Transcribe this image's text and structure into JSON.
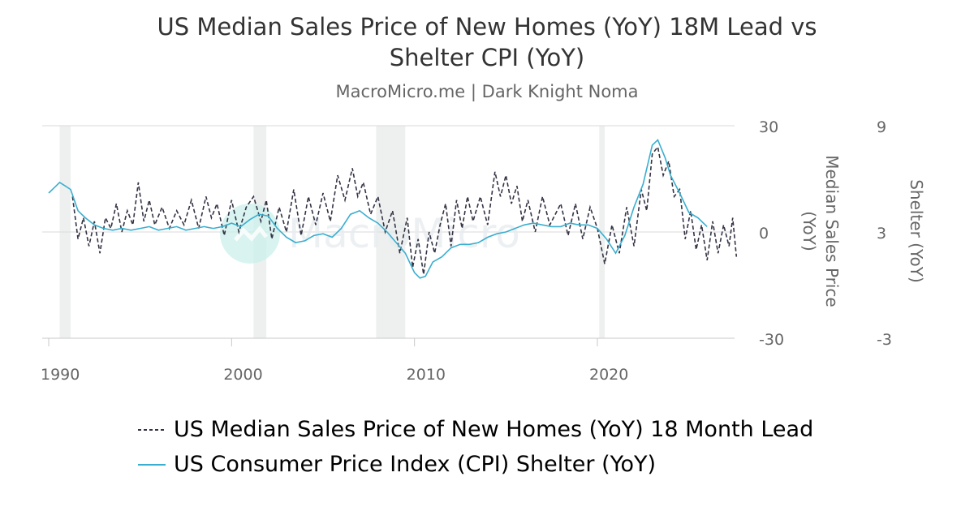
{
  "chart_data": {
    "type": "line",
    "title_lines": [
      "US Median Sales Price of New Homes (YoY) 18M Lead vs",
      "Shelter CPI (YoY)"
    ],
    "subtitle": "MacroMicro.me | Dark Knight Noma",
    "x_ticks": [
      "1990",
      "2000",
      "2010",
      "2020"
    ],
    "xlim": [
      1990,
      2027.5
    ],
    "left_axis": {
      "ticks": [
        "30",
        "0",
        "-30"
      ],
      "range": [
        -30,
        30
      ]
    },
    "right_axis_1": {
      "label_lines": [
        "Median Sales Price",
        "(YoY)"
      ],
      "ticks": [
        "30",
        "0",
        "-30"
      ],
      "range": [
        -30,
        30
      ]
    },
    "right_axis_2": {
      "label": "Shelter (YoY)",
      "ticks": [
        "9",
        "3",
        "-3"
      ],
      "range": [
        -3,
        9
      ]
    },
    "recessions": [
      [
        1990.6,
        1991.2
      ],
      [
        2001.2,
        2001.9
      ],
      [
        2007.9,
        2009.5
      ],
      [
        2020.1,
        2020.4
      ]
    ],
    "series": [
      {
        "name": "US Median Sales Price of New Homes (YoY) 18 Month Lead",
        "axis": "left",
        "style": "dashed",
        "color": "#333344",
        "points": [
          [
            1991.3,
            10
          ],
          [
            1991.6,
            -2
          ],
          [
            1991.9,
            4
          ],
          [
            1992.2,
            -4
          ],
          [
            1992.5,
            3
          ],
          [
            1992.8,
            -6
          ],
          [
            1993.1,
            4
          ],
          [
            1993.4,
            1
          ],
          [
            1993.7,
            8
          ],
          [
            1994.0,
            0
          ],
          [
            1994.3,
            6
          ],
          [
            1994.6,
            2
          ],
          [
            1994.9,
            14
          ],
          [
            1995.2,
            3
          ],
          [
            1995.5,
            9
          ],
          [
            1995.8,
            2
          ],
          [
            1996.2,
            7
          ],
          [
            1996.6,
            1
          ],
          [
            1997.0,
            6
          ],
          [
            1997.4,
            2
          ],
          [
            1997.8,
            9
          ],
          [
            1998.2,
            1
          ],
          [
            1998.6,
            10
          ],
          [
            1998.9,
            4
          ],
          [
            1999.2,
            8
          ],
          [
            1999.6,
            -1
          ],
          [
            2000.0,
            9
          ],
          [
            2000.4,
            0
          ],
          [
            2000.8,
            7
          ],
          [
            2001.2,
            10
          ],
          [
            2001.6,
            3
          ],
          [
            2001.9,
            9
          ],
          [
            2002.2,
            -2
          ],
          [
            2002.6,
            7
          ],
          [
            2003.0,
            0
          ],
          [
            2003.4,
            12
          ],
          [
            2003.8,
            -1
          ],
          [
            2004.2,
            10
          ],
          [
            2004.6,
            2
          ],
          [
            2005.0,
            11
          ],
          [
            2005.4,
            3
          ],
          [
            2005.8,
            16
          ],
          [
            2006.2,
            9
          ],
          [
            2006.6,
            18
          ],
          [
            2006.9,
            10
          ],
          [
            2007.2,
            14
          ],
          [
            2007.6,
            5
          ],
          [
            2008.0,
            10
          ],
          [
            2008.4,
            0
          ],
          [
            2008.8,
            6
          ],
          [
            2009.2,
            -6
          ],
          [
            2009.6,
            4
          ],
          [
            2009.9,
            -10
          ],
          [
            2010.2,
            -2
          ],
          [
            2010.5,
            -12
          ],
          [
            2010.8,
            0
          ],
          [
            2011.1,
            -6
          ],
          [
            2011.4,
            2
          ],
          [
            2011.7,
            8
          ],
          [
            2012.0,
            -4
          ],
          [
            2012.3,
            9
          ],
          [
            2012.6,
            1
          ],
          [
            2012.9,
            10
          ],
          [
            2013.2,
            3
          ],
          [
            2013.6,
            10
          ],
          [
            2014.0,
            2
          ],
          [
            2014.4,
            17
          ],
          [
            2014.7,
            10
          ],
          [
            2015.0,
            16
          ],
          [
            2015.3,
            8
          ],
          [
            2015.6,
            13
          ],
          [
            2015.9,
            3
          ],
          [
            2016.2,
            9
          ],
          [
            2016.6,
            0
          ],
          [
            2017.0,
            10
          ],
          [
            2017.4,
            2
          ],
          [
            2018.0,
            8
          ],
          [
            2018.4,
            -1
          ],
          [
            2018.8,
            8
          ],
          [
            2019.2,
            -2
          ],
          [
            2019.6,
            7
          ],
          [
            2020.0,
            1
          ],
          [
            2020.4,
            -9
          ],
          [
            2020.8,
            2
          ],
          [
            2021.2,
            -6
          ],
          [
            2021.6,
            7
          ],
          [
            2022.0,
            -4
          ],
          [
            2022.4,
            12
          ],
          [
            2022.7,
            6
          ],
          [
            2023.0,
            22
          ],
          [
            2023.3,
            24
          ],
          [
            2023.6,
            16
          ],
          [
            2023.9,
            20
          ],
          [
            2024.2,
            10
          ],
          [
            2024.5,
            12
          ],
          [
            2024.8,
            -2
          ],
          [
            2025.1,
            6
          ],
          [
            2025.4,
            -5
          ],
          [
            2025.7,
            2
          ],
          [
            2026.0,
            -8
          ],
          [
            2026.3,
            3
          ],
          [
            2026.6,
            -6
          ],
          [
            2026.9,
            2
          ],
          [
            2027.2,
            -4
          ],
          [
            2027.4,
            4
          ],
          [
            2027.6,
            -7
          ]
        ]
      },
      {
        "name": "US Consumer Price Index (CPI) Shelter (YoY)",
        "axis": "right_2",
        "style": "solid",
        "color": "#3aaecf",
        "points": [
          [
            1990.0,
            5.2
          ],
          [
            1990.3,
            5.5
          ],
          [
            1990.6,
            5.8
          ],
          [
            1990.9,
            5.6
          ],
          [
            1991.2,
            5.4
          ],
          [
            1991.6,
            4.2
          ],
          [
            1992.0,
            3.8
          ],
          [
            1992.5,
            3.4
          ],
          [
            1993.0,
            3.2
          ],
          [
            1993.5,
            3.1
          ],
          [
            1994.0,
            3.2
          ],
          [
            1994.5,
            3.1
          ],
          [
            1995.0,
            3.2
          ],
          [
            1995.5,
            3.3
          ],
          [
            1996.0,
            3.1
          ],
          [
            1996.5,
            3.2
          ],
          [
            1997.0,
            3.3
          ],
          [
            1997.5,
            3.1
          ],
          [
            1998.0,
            3.2
          ],
          [
            1998.5,
            3.3
          ],
          [
            1999.0,
            3.2
          ],
          [
            1999.5,
            3.3
          ],
          [
            2000.0,
            3.5
          ],
          [
            2000.5,
            3.3
          ],
          [
            2001.0,
            3.7
          ],
          [
            2001.5,
            4.0
          ],
          [
            2002.0,
            3.9
          ],
          [
            2002.5,
            3.2
          ],
          [
            2003.0,
            2.7
          ],
          [
            2003.5,
            2.4
          ],
          [
            2004.0,
            2.5
          ],
          [
            2004.5,
            2.8
          ],
          [
            2005.0,
            2.9
          ],
          [
            2005.5,
            2.7
          ],
          [
            2006.0,
            3.2
          ],
          [
            2006.5,
            4.0
          ],
          [
            2007.0,
            4.2
          ],
          [
            2007.5,
            3.8
          ],
          [
            2008.0,
            3.5
          ],
          [
            2008.5,
            3.0
          ],
          [
            2009.0,
            2.4
          ],
          [
            2009.5,
            1.8
          ],
          [
            2010.0,
            0.7
          ],
          [
            2010.3,
            0.4
          ],
          [
            2010.6,
            0.5
          ],
          [
            2011.0,
            1.3
          ],
          [
            2011.5,
            1.6
          ],
          [
            2012.0,
            2.1
          ],
          [
            2012.5,
            2.3
          ],
          [
            2013.0,
            2.3
          ],
          [
            2013.5,
            2.4
          ],
          [
            2014.0,
            2.7
          ],
          [
            2014.5,
            2.9
          ],
          [
            2015.0,
            3.0
          ],
          [
            2015.5,
            3.2
          ],
          [
            2016.0,
            3.4
          ],
          [
            2016.5,
            3.5
          ],
          [
            2017.0,
            3.4
          ],
          [
            2017.5,
            3.3
          ],
          [
            2018.0,
            3.3
          ],
          [
            2018.5,
            3.5
          ],
          [
            2019.0,
            3.4
          ],
          [
            2019.5,
            3.4
          ],
          [
            2020.0,
            3.2
          ],
          [
            2020.5,
            2.6
          ],
          [
            2021.0,
            1.8
          ],
          [
            2021.5,
            2.8
          ],
          [
            2022.0,
            4.4
          ],
          [
            2022.5,
            5.7
          ],
          [
            2023.0,
            7.9
          ],
          [
            2023.3,
            8.2
          ],
          [
            2023.7,
            7.2
          ],
          [
            2024.0,
            6.2
          ],
          [
            2024.5,
            5.2
          ],
          [
            2025.0,
            4.1
          ],
          [
            2025.5,
            3.8
          ],
          [
            2026.0,
            3.3
          ]
        ]
      }
    ],
    "legend": {
      "placement": "bottom"
    }
  },
  "watermark": "MacroMicro"
}
